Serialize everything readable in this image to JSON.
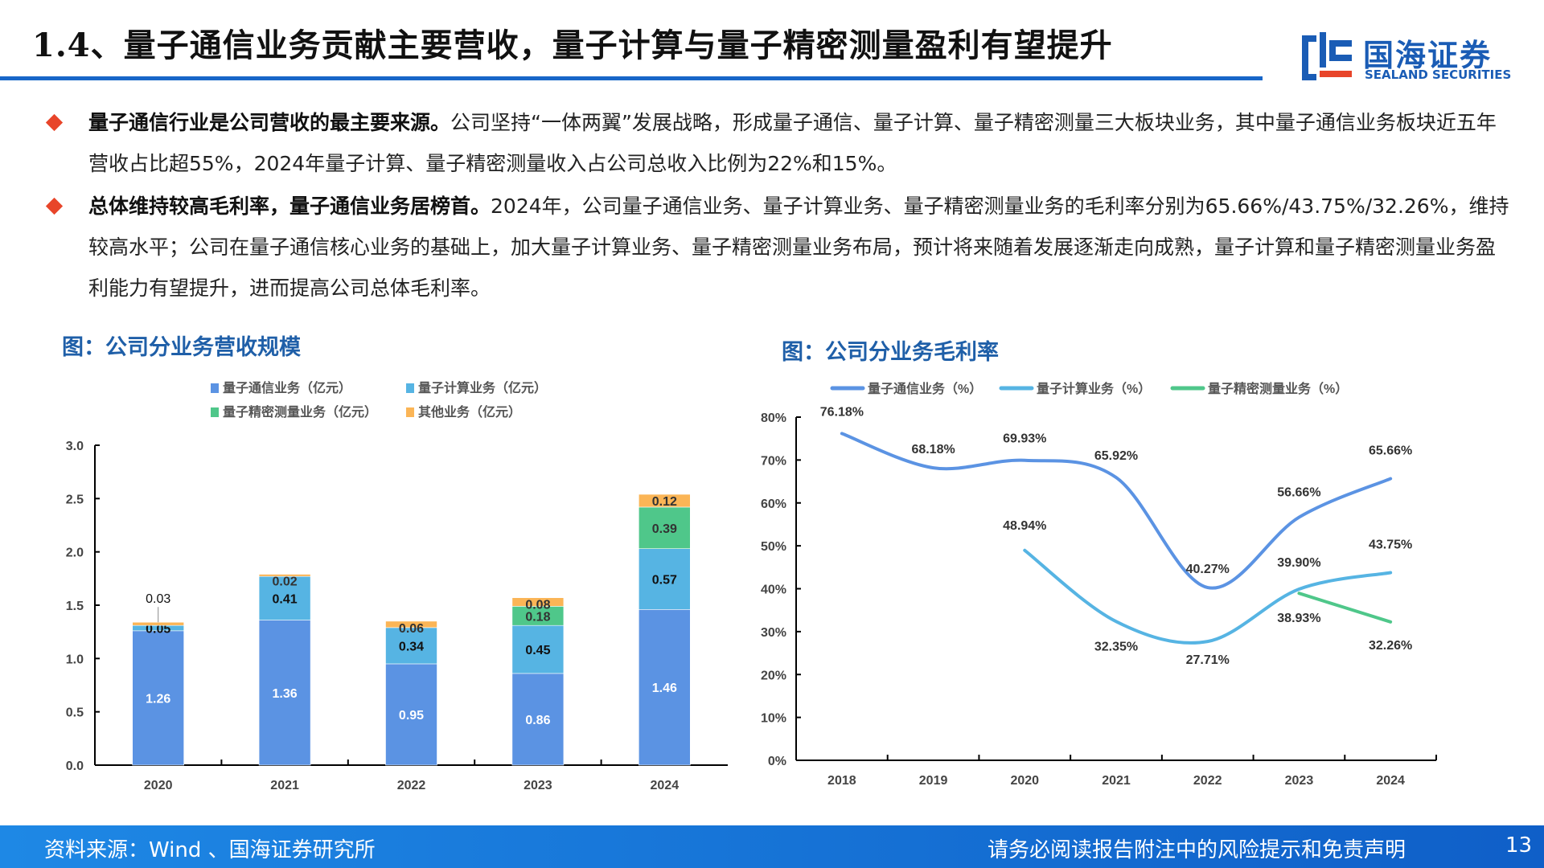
{
  "header": {
    "title": "1.4、量子通信业务贡献主要营收，量子计算与量子精密测量盈利有望提升",
    "logo_cn": "国海证券",
    "logo_en": "SEALAND SECURITIES"
  },
  "bullets": [
    {
      "bold": "量子通信行业是公司营收的最主要来源。",
      "text": "公司坚持“一体两翼”发展战略，形成量子通信、量子计算、量子精密测量三大板块业务，其中量子通信业务板块近五年营收占比超55%，2024年量子计算、量子精密测量收入占公司总收入比例为22%和15%。"
    },
    {
      "bold": "总体维持较高毛利率，量子通信业务居榜首。",
      "text": "2024年，公司量子通信业务、量子计算业务、量子精密测量业务的毛利率分别为65.66%/43.75%/32.26%，维持较高水平；公司在量子通信核心业务的基础上，加大量子计算业务、量子精密测量业务布局，预计将来随着发展逐渐走向成熟，量子计算和量子精密测量业务盈利能力有望提升，进而提高公司总体毛利率。"
    }
  ],
  "chart_data": [
    {
      "type": "bar",
      "stacked": true,
      "title": "图：公司分业务营收规模",
      "categories": [
        "2020",
        "2021",
        "2022",
        "2023",
        "2024"
      ],
      "ylim": [
        0,
        3.0
      ],
      "yticks": [
        "0.0",
        "0.5",
        "1.0",
        "1.5",
        "2.0",
        "2.5",
        "3.0"
      ],
      "legend_placement": "top",
      "series": [
        {
          "name": "量子通信业务（亿元）",
          "color": "#5b93e3",
          "values": [
            1.26,
            1.36,
            0.95,
            0.86,
            1.46
          ],
          "labels": [
            "1.26",
            "1.36",
            "0.95",
            "0.86",
            "1.46"
          ]
        },
        {
          "name": "量子计算业务（亿元）",
          "color": "#56b4e3",
          "values": [
            0.05,
            0.41,
            0.34,
            0.45,
            0.57
          ],
          "labels": [
            "0.05",
            "0.41",
            "0.34",
            "0.45",
            "0.57"
          ]
        },
        {
          "name": "量子精密测量业务（亿元）",
          "color": "#4fc78a",
          "values": [
            0,
            0,
            0,
            0.18,
            0.39
          ],
          "labels": [
            "",
            "",
            "",
            "0.18",
            "0.39"
          ]
        },
        {
          "name": "其他业务（亿元）",
          "color": "#fbb556",
          "values": [
            0.03,
            0.02,
            0.06,
            0.08,
            0.12
          ],
          "labels": [
            "0.03",
            "0.02",
            "0.06",
            "0.08",
            "0.12"
          ]
        }
      ]
    },
    {
      "type": "line",
      "title": "图：公司分业务毛利率",
      "categories": [
        "2018",
        "2019",
        "2020",
        "2021",
        "2022",
        "2023",
        "2024"
      ],
      "ylim": [
        0,
        80
      ],
      "yticks": [
        "0%",
        "10%",
        "20%",
        "30%",
        "40%",
        "50%",
        "60%",
        "70%",
        "80%"
      ],
      "legend_placement": "top",
      "series": [
        {
          "name": "量子通信业务（%）",
          "color": "#5b93e3",
          "values": [
            76.18,
            68.18,
            69.93,
            65.92,
            40.27,
            56.66,
            65.66
          ],
          "labels": [
            "76.18%",
            "68.18%",
            "69.93%",
            "65.92%",
            "40.27%",
            "56.66%",
            "65.66%"
          ]
        },
        {
          "name": "量子计算业务（%）",
          "color": "#56b4e3",
          "values": [
            null,
            null,
            48.94,
            32.35,
            27.71,
            39.9,
            43.75
          ],
          "labels": [
            "",
            "",
            "48.94%",
            "32.35%",
            "27.71%",
            "39.90%",
            "43.75%"
          ]
        },
        {
          "name": "量子精密测量业务（%）",
          "color": "#4fc78a",
          "values": [
            null,
            null,
            null,
            null,
            null,
            38.93,
            32.26
          ],
          "labels": [
            "",
            "",
            "",
            "",
            "",
            "38.93%",
            "32.26%"
          ]
        }
      ]
    }
  ],
  "footer": {
    "source": "资料来源：Wind 、国海证券研究所",
    "disclaimer": "请务必阅读报告附注中的风险提示和免责声明",
    "page": "13"
  }
}
